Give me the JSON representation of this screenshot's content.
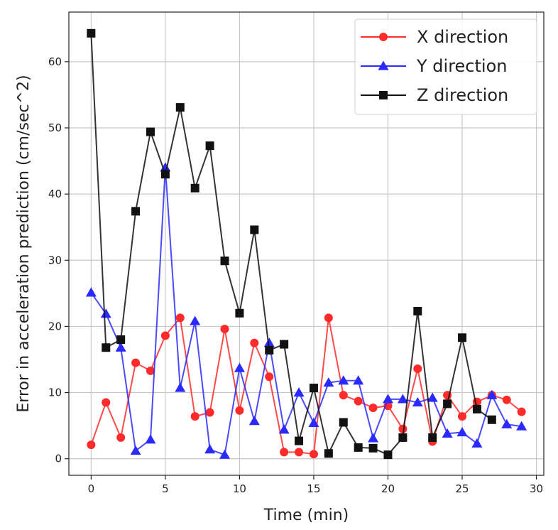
{
  "chart_data": {
    "type": "line",
    "title": "",
    "xlabel": "Time (min)",
    "ylabel": "Error in acceleration prediction (cm/sec^2)",
    "xlim": [
      -1.5,
      30.5
    ],
    "ylim": [
      -2.5,
      67.5
    ],
    "xticks": [
      0,
      5,
      10,
      15,
      20,
      25,
      30
    ],
    "yticks": [
      0,
      10,
      20,
      30,
      40,
      50,
      60
    ],
    "grid": true,
    "legend_position": "top-right",
    "x": [
      0,
      1,
      2,
      3,
      4,
      5,
      6,
      7,
      8,
      9,
      10,
      11,
      12,
      13,
      14,
      15,
      16,
      17,
      18,
      19,
      20,
      21,
      22,
      23,
      24,
      25,
      26,
      27,
      28,
      29
    ],
    "series": [
      {
        "name": "X direction",
        "color": "#ff2a2a",
        "marker": "circle",
        "values": [
          2.1,
          8.5,
          3.2,
          14.5,
          13.3,
          18.6,
          21.3,
          6.4,
          7.0,
          19.6,
          7.3,
          17.5,
          12.4,
          1.0,
          1.0,
          0.7,
          21.3,
          9.6,
          8.7,
          7.7,
          8.0,
          4.5,
          13.6,
          2.6,
          9.6,
          6.4,
          8.6,
          9.6,
          8.9,
          7.1
        ]
      },
      {
        "name": "Y direction",
        "color": "#2a2aff",
        "marker": "triangle",
        "values": [
          25.1,
          21.9,
          16.8,
          1.2,
          2.9,
          44.0,
          10.7,
          20.8,
          1.4,
          0.6,
          13.7,
          5.7,
          17.5,
          4.4,
          10.0,
          5.4,
          11.5,
          11.8,
          11.8,
          3.1,
          9.0,
          9.0,
          8.5,
          9.2,
          3.8,
          4.0,
          2.3,
          9.6,
          5.2,
          4.9
        ]
      },
      {
        "name": "Z direction",
        "color": "#111111",
        "marker": "square",
        "values": [
          64.3,
          16.8,
          18.0,
          37.4,
          49.4,
          43.0,
          53.1,
          40.9,
          47.3,
          29.9,
          22.0,
          34.6,
          16.4,
          17.3,
          2.7,
          10.7,
          0.8,
          5.5,
          1.7,
          1.6,
          0.6,
          3.2,
          22.3,
          3.2,
          8.3,
          18.3,
          7.5,
          5.9,
          null,
          null
        ]
      }
    ]
  }
}
